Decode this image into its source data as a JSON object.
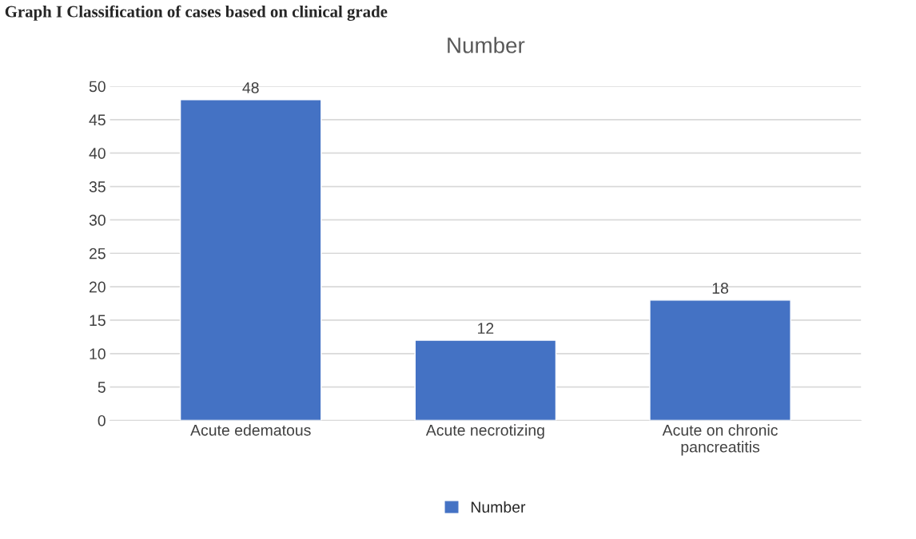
{
  "chart_data": {
    "type": "bar",
    "title": "Number",
    "categories": [
      "Acute edematous",
      "Acute necrotizing",
      "Acute on chronic\npancreatitis"
    ],
    "series": [
      {
        "name": "Number",
        "color": "#4472c4",
        "values": [
          48,
          12,
          18
        ]
      }
    ],
    "ylim": [
      0,
      50
    ],
    "yticks": [
      0,
      5,
      10,
      15,
      20,
      25,
      30,
      35,
      40,
      45,
      50
    ],
    "grid": "y",
    "legend": "bottom",
    "data_labels": true,
    "annotations": [
      "Graph I Classification of cases based on clinical grade"
    ]
  }
}
